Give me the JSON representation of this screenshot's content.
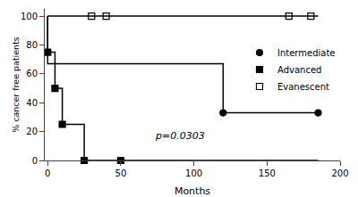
{
  "chart_data": {
    "type": "line",
    "xlabel": "Months",
    "ylabel": "% cancer free patients",
    "xlim": [
      -2,
      200
    ],
    "ylim": [
      0,
      105
    ],
    "xticks": [
      0,
      50,
      100,
      150,
      200
    ],
    "yticks": [
      0,
      20,
      40,
      60,
      80,
      100
    ],
    "grid": false,
    "legend": "right",
    "series": [
      {
        "name": "Intermediate",
        "color": "#000000",
        "marker": "circle",
        "x": [
          0,
          0,
          120,
          120,
          185
        ],
        "values": [
          100,
          67,
          67,
          33,
          33
        ],
        "marker_x": [
          120,
          185
        ],
        "marker_values": [
          33,
          33
        ]
      },
      {
        "name": "Advanced",
        "color": "#000000",
        "marker": "square",
        "x": [
          0,
          0,
          5,
          5,
          10,
          10,
          25,
          25,
          50,
          50,
          185
        ],
        "values": [
          100,
          75,
          75,
          50,
          50,
          25,
          25,
          0,
          0,
          0,
          0
        ],
        "marker_x": [
          0,
          5,
          10,
          25,
          50
        ],
        "marker_values": [
          75,
          50,
          25,
          0,
          0
        ]
      },
      {
        "name": "Evanescent",
        "color": "#000000",
        "marker": "square-open",
        "x": [
          0,
          185
        ],
        "values": [
          100,
          100
        ],
        "marker_x": [
          30,
          40,
          165,
          180
        ],
        "marker_values": [
          100,
          100,
          100,
          100
        ]
      }
    ],
    "annotations": [
      {
        "text": "p=0.0303",
        "x": 72,
        "y": 12
      }
    ]
  }
}
